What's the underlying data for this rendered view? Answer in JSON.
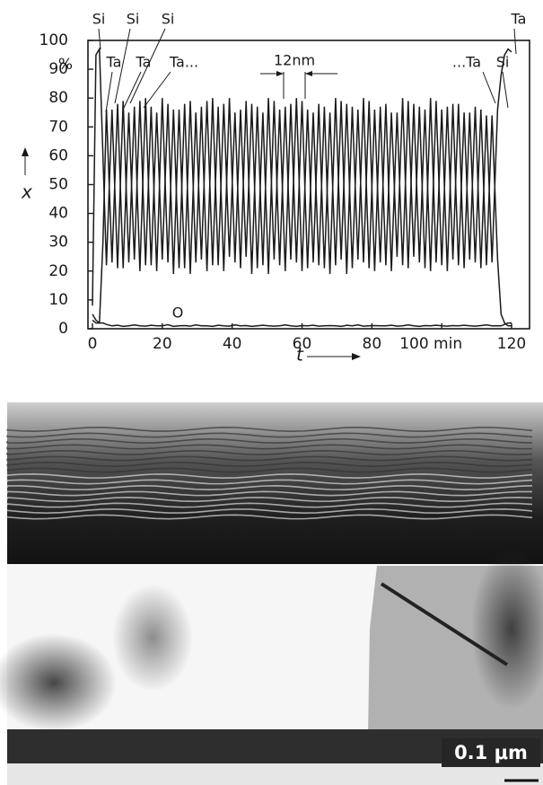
{
  "chart_data": {
    "type": "line",
    "xlabel": "t",
    "ylabel": "x",
    "ylabel_unit": "%",
    "xlim": [
      0,
      120
    ],
    "ylim": [
      0,
      100
    ],
    "xticks": [
      0,
      20,
      40,
      60,
      80,
      {
        "value": 100,
        "label": "100 min"
      },
      120
    ],
    "yticks": [
      0,
      10,
      20,
      30,
      40,
      50,
      60,
      70,
      80,
      90,
      100
    ],
    "x": [
      0,
      1,
      2,
      3,
      4,
      5.6,
      7.2,
      8.8,
      10.4,
      12,
      13.6,
      15.2,
      16.8,
      18.4,
      20,
      21.6,
      23.2,
      24.8,
      26.4,
      28,
      29.6,
      31.2,
      32.8,
      34.4,
      36,
      37.6,
      39.2,
      40.8,
      42.4,
      44,
      45.6,
      47.2,
      48.8,
      50.4,
      52,
      53.6,
      55.2,
      56.8,
      58.4,
      60,
      61.6,
      63.2,
      64.8,
      66.4,
      68,
      69.6,
      71.2,
      72.8,
      74.4,
      76,
      77.6,
      79.2,
      80.8,
      82.4,
      84,
      85.6,
      87.2,
      88.8,
      90.4,
      92,
      93.6,
      95.2,
      96.8,
      98.4,
      100,
      101.6,
      103.2,
      104.8,
      106.4,
      108,
      109.6,
      111.2,
      112.8,
      114.4,
      116,
      117,
      118,
      119,
      120
    ],
    "series": [
      {
        "name": "Si",
        "color": "#1a1a1a",
        "values": [
          8,
          95,
          97,
          60,
          22,
          76,
          21,
          79,
          23,
          77,
          20,
          80,
          22,
          75,
          24,
          78,
          19,
          76,
          21,
          79,
          23,
          77,
          20,
          80,
          22,
          78,
          25,
          75,
          21,
          79,
          19,
          77,
          22,
          80,
          24,
          76,
          20,
          78,
          23,
          79,
          21,
          75,
          22,
          77,
          19,
          80,
          24,
          78,
          21,
          76,
          23,
          79,
          20,
          77,
          22,
          75,
          25,
          80,
          21,
          78,
          23,
          76,
          20,
          79,
          22,
          77,
          24,
          78,
          21,
          75,
          23,
          76,
          22,
          74,
          24,
          5,
          2,
          1,
          1
        ]
      },
      {
        "name": "Ta",
        "color": "#1a1a1a",
        "values": [
          3,
          2,
          2,
          30,
          76,
          23,
          78,
          21,
          75,
          24,
          79,
          22,
          77,
          20,
          80,
          23,
          76,
          21,
          78,
          19,
          75,
          24,
          79,
          22,
          77,
          20,
          80,
          23,
          76,
          25,
          78,
          21,
          75,
          19,
          79,
          22,
          77,
          24,
          80,
          20,
          76,
          23,
          78,
          21,
          75,
          22,
          79,
          19,
          77,
          24,
          80,
          21,
          76,
          23,
          78,
          20,
          75,
          22,
          79,
          25,
          77,
          21,
          80,
          23,
          76,
          20,
          78,
          22,
          75,
          24,
          77,
          21,
          74,
          23,
          76,
          88,
          95,
          97,
          96
        ]
      },
      {
        "name": "O",
        "color": "#1a1a1a",
        "values": [
          5,
          3,
          2,
          2,
          1.5,
          1,
          1.2,
          0.8,
          1,
          1.3,
          1,
          0.9,
          1.2,
          1,
          1,
          1.4,
          0.8,
          1,
          1.1,
          0.9,
          1.3,
          1,
          1,
          0.8,
          1.2,
          1,
          0.9,
          1.3,
          1,
          1.1,
          0.8,
          1,
          1.2,
          1,
          0.9,
          1,
          1.3,
          1,
          0.8,
          1.1,
          1,
          1.2,
          0.9,
          1,
          1.1,
          1,
          0.8,
          1.2,
          1,
          1.3,
          0.9,
          1,
          1.1,
          1,
          1,
          1.2,
          0.9,
          1,
          1.3,
          1,
          0.8,
          1.1,
          1,
          1.2,
          1,
          0.9,
          1.1,
          1,
          1.2,
          1,
          0.9,
          1.1,
          1.3,
          1,
          1,
          1,
          1.5,
          2,
          2
        ]
      }
    ],
    "annotations": [
      "Si",
      "Si",
      "Si",
      "Ta",
      "Ta",
      "Ta...",
      "12nm",
      "...Ta",
      "Si",
      "Ta",
      "O"
    ]
  },
  "micrograph": {
    "scale_label": "0.1 μm"
  }
}
